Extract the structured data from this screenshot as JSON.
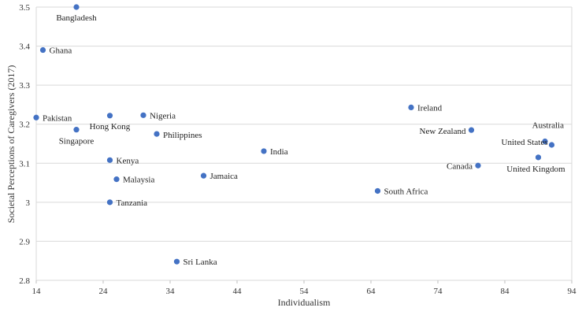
{
  "chart_data": {
    "type": "scatter",
    "xlabel": "Individualism",
    "ylabel": "Societal Perceptions of Caregivers (2017)",
    "xlim": [
      14,
      94
    ],
    "ylim": [
      2.8,
      3.5
    ],
    "x_ticks": [
      "14",
      "24",
      "34",
      "44",
      "54",
      "64",
      "74",
      "84",
      "94"
    ],
    "y_ticks": [
      "2.8",
      "2.9",
      "3",
      "3.1",
      "3.2",
      "3.3",
      "3.4",
      "3.5"
    ],
    "grid": "horizontal",
    "marker_color": "#4472C4",
    "points": [
      {
        "label": "Bangladesh",
        "x": 20,
        "y": 3.5
      },
      {
        "label": "Ghana",
        "x": 15,
        "y": 3.39
      },
      {
        "label": "Pakistan",
        "x": 14,
        "y": 3.217
      },
      {
        "label": "Hong Kong",
        "x": 25,
        "y": 3.222
      },
      {
        "label": "Singapore",
        "x": 20,
        "y": 3.186
      },
      {
        "label": "Nigeria",
        "x": 30,
        "y": 3.223
      },
      {
        "label": "Philippines",
        "x": 32,
        "y": 3.175
      },
      {
        "label": "Kenya",
        "x": 25,
        "y": 3.108
      },
      {
        "label": "Malaysia",
        "x": 26,
        "y": 3.059
      },
      {
        "label": "Tanzania",
        "x": 25,
        "y": 3.0
      },
      {
        "label": "Jamaica",
        "x": 39,
        "y": 3.068
      },
      {
        "label": "Sri Lanka",
        "x": 35,
        "y": 2.848
      },
      {
        "label": "India",
        "x": 48,
        "y": 3.131
      },
      {
        "label": "South Africa",
        "x": 65,
        "y": 3.029
      },
      {
        "label": "Ireland",
        "x": 70,
        "y": 3.243
      },
      {
        "label": "New Zealand",
        "x": 79,
        "y": 3.185
      },
      {
        "label": "Canada",
        "x": 80,
        "y": 3.094
      },
      {
        "label": "Australia",
        "x": 90,
        "y": 3.156
      },
      {
        "label": "United States",
        "x": 91,
        "y": 3.147
      },
      {
        "label": "United Kingdom",
        "x": 89,
        "y": 3.115
      }
    ]
  }
}
